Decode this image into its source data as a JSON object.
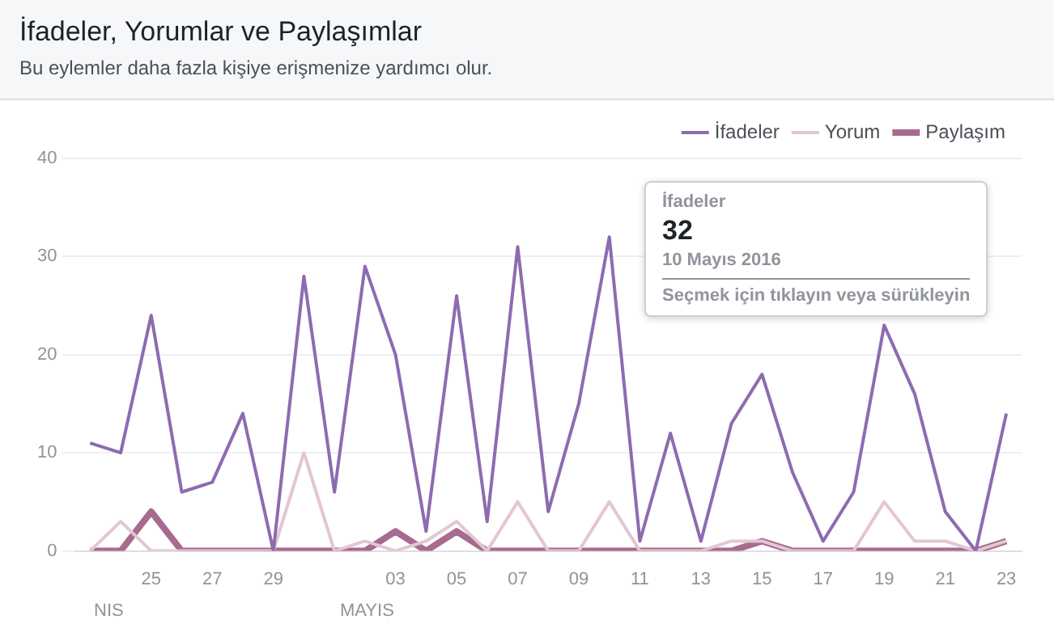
{
  "chart_data": {
    "type": "line",
    "title": "İfadeler, Yorumlar ve Paylaşımlar",
    "subtitle": "Bu eylemler daha fazla kişiye erişmenize yardımcı olur.",
    "categories": [
      null,
      null,
      "25",
      null,
      "27",
      null,
      "29",
      null,
      null,
      null,
      "03",
      null,
      "05",
      null,
      "07",
      null,
      "09",
      null,
      "11",
      null,
      "13",
      null,
      "15",
      null,
      "17",
      null,
      "19",
      null,
      "21",
      null,
      "23"
    ],
    "series": [
      {
        "name": "İfadeler",
        "color": "#8e6bb0",
        "values": [
          11,
          10,
          24,
          6,
          7,
          14,
          0,
          28,
          6,
          29,
          20,
          2,
          26,
          3,
          31,
          4,
          15,
          32,
          1,
          12,
          1,
          13,
          18,
          8,
          1,
          6,
          23,
          16,
          4,
          0,
          14
        ]
      },
      {
        "name": "Yorum",
        "color": "#e3c6d3",
        "values": [
          0,
          3,
          0,
          0,
          0,
          0,
          0,
          10,
          0,
          1,
          0,
          1,
          3,
          0,
          5,
          0,
          0,
          5,
          0,
          0,
          0,
          1,
          1,
          0,
          0,
          0,
          5,
          1,
          1,
          0,
          1
        ]
      },
      {
        "name": "Paylaşım",
        "color": "#a86a8e",
        "values": [
          0,
          0,
          4,
          0,
          0,
          0,
          0,
          0,
          0,
          0,
          2,
          0,
          2,
          0,
          0,
          0,
          0,
          0,
          0,
          0,
          0,
          0,
          1,
          0,
          0,
          0,
          0,
          0,
          0,
          0,
          1
        ]
      }
    ],
    "ylim": [
      0,
      40
    ],
    "yticks": [
      0,
      10,
      20,
      30,
      40
    ],
    "grid": "y",
    "legend": "top right",
    "marker": "none",
    "line_style": "solid",
    "annotations": [
      "İfadeler",
      "32",
      "10 Mayıs 2016",
      "Seçmek için tıklayın veya sürükleyin",
      "NIS",
      "MAYIS"
    ]
  }
}
